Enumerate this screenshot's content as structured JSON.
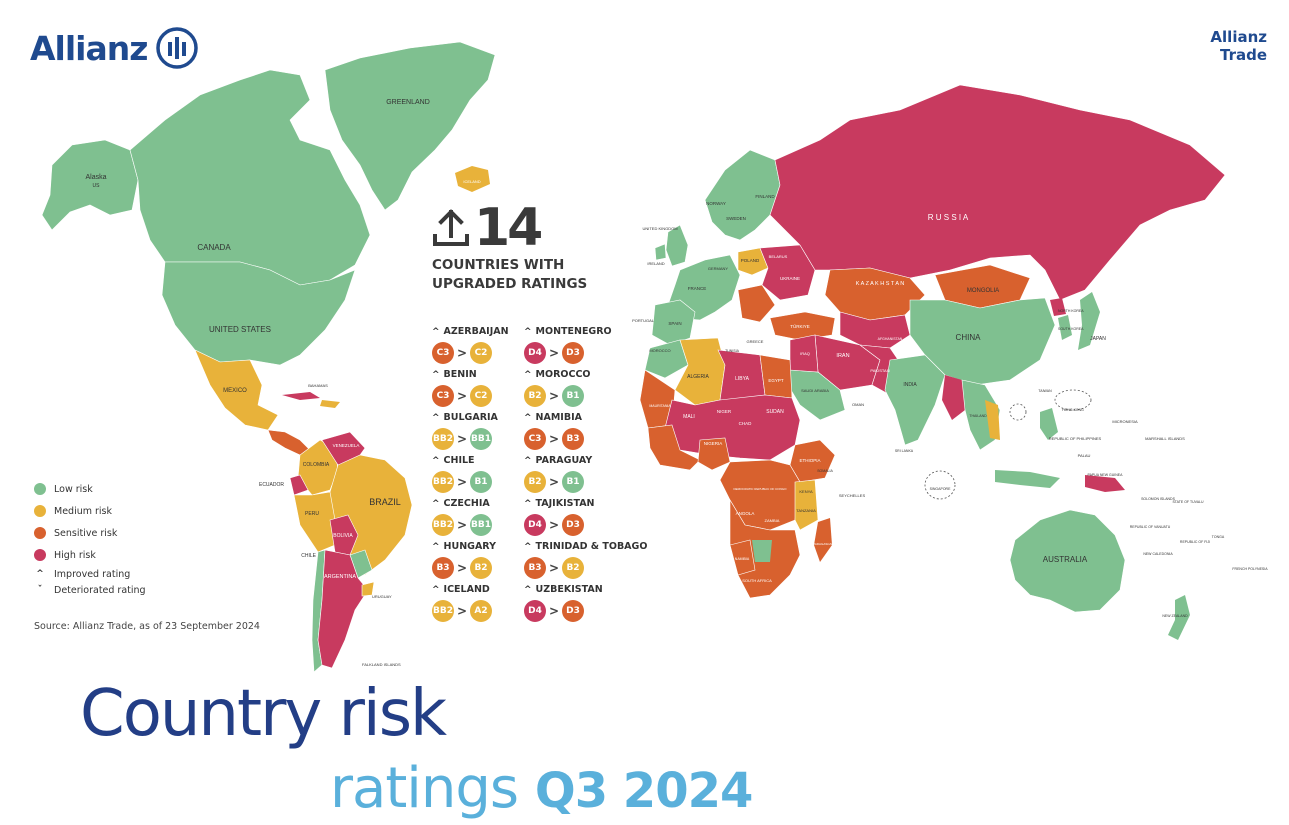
{
  "brand": {
    "name": "Allianz",
    "trade_line1": "Allianz",
    "trade_line2": "Trade"
  },
  "colors": {
    "low": "#7fc090",
    "medium": "#e8b23a",
    "sensitive": "#d8612e",
    "high": "#c83a5f",
    "navy": "#233e86",
    "sky": "#5ab0db"
  },
  "upgrades": {
    "count": "14",
    "label": "COUNTRIES WITH UPGRADED RATINGS",
    "icon": "upload-arrow-icon"
  },
  "ratings": [
    {
      "country": "AZERBAIJAN",
      "from": "C3",
      "from_risk": "sensitive",
      "to": "C2",
      "to_risk": "medium"
    },
    {
      "country": "BENIN",
      "from": "C3",
      "from_risk": "sensitive",
      "to": "C2",
      "to_risk": "medium"
    },
    {
      "country": "BULGARIA",
      "from": "BB2",
      "from_risk": "medium",
      "to": "BB1",
      "to_risk": "low"
    },
    {
      "country": "CHILE",
      "from": "BB2",
      "from_risk": "medium",
      "to": "B1",
      "to_risk": "low"
    },
    {
      "country": "CZECHIA",
      "from": "BB2",
      "from_risk": "medium",
      "to": "BB1",
      "to_risk": "low"
    },
    {
      "country": "HUNGARY",
      "from": "B3",
      "from_risk": "sensitive",
      "to": "B2",
      "to_risk": "medium"
    },
    {
      "country": "ICELAND",
      "from": "BB2",
      "from_risk": "medium",
      "to": "A2",
      "to_risk": "medium"
    },
    {
      "country": "MONTENEGRO",
      "from": "D4",
      "from_risk": "high",
      "to": "D3",
      "to_risk": "sensitive"
    },
    {
      "country": "MOROCCO",
      "from": "B2",
      "from_risk": "medium",
      "to": "B1",
      "to_risk": "low"
    },
    {
      "country": "NAMIBIA",
      "from": "C3",
      "from_risk": "sensitive",
      "to": "B3",
      "to_risk": "sensitive"
    },
    {
      "country": "PARAGUAY",
      "from": "B2",
      "from_risk": "medium",
      "to": "B1",
      "to_risk": "low"
    },
    {
      "country": "TAJIKISTAN",
      "from": "D4",
      "from_risk": "high",
      "to": "D3",
      "to_risk": "sensitive"
    },
    {
      "country": "TRINIDAD & TOBAGO",
      "from": "B3",
      "from_risk": "sensitive",
      "to": "B2",
      "to_risk": "medium"
    },
    {
      "country": "UZBEKISTAN",
      "from": "D4",
      "from_risk": "high",
      "to": "D3",
      "to_risk": "sensitive"
    }
  ],
  "legend": {
    "low": "Low risk",
    "medium": "Medium risk",
    "sensitive": "Sensitive risk",
    "high": "High risk",
    "improved": "Improved rating",
    "deteriorated": "Deteriorated rating"
  },
  "source": "Source: Allianz Trade, as of 23 September 2024",
  "title": {
    "line1": "Country risk",
    "line2a": "ratings",
    "line2b": "Q3 2024"
  },
  "map_labels": {
    "greenland": "GREENLAND",
    "alaska": "Alaska",
    "us_small": "US",
    "iceland": "ICELAND",
    "canada": "CANADA",
    "united_states": "UNITED STATES",
    "mexico": "MEXICO",
    "colombia": "COLOMBIA",
    "venezuela": "VENEZUELA",
    "ecuador": "ECUADOR",
    "peru": "PERU",
    "brazil": "BRAZIL",
    "bolivia": "BOLIVIA",
    "chile": "CHILE",
    "argentina": "ARGENTINA",
    "uruguay": "URUGUAY",
    "falkland": "FALKLAND ISLANDS",
    "norway": "NORWAY",
    "sweden": "SWEDEN",
    "finland": "FINLAND",
    "uk": "UNITED KINGDOM",
    "ireland": "IRELAND",
    "france": "FRANCE",
    "spain": "SPAIN",
    "portugal": "PORTUGAL",
    "germany": "GERMANY",
    "poland": "POLAND",
    "ukraine": "UKRAINE",
    "belarus": "BELARUS",
    "turkiye": "TÜRKIYE",
    "greece": "GREECE",
    "russia": "R U S S I A",
    "kazakhstan": "K A Z A K H S T A N",
    "mongolia": "MONGOLIA",
    "china": "CHINA",
    "japan": "JAPAN",
    "south_korea": "SOUTH KOREA",
    "north_korea": "NORTH KOREA",
    "india": "INDIA",
    "iran": "IRAN",
    "iraq": "IRAQ",
    "saudi": "SAUDI ARABIA",
    "oman": "OMAN",
    "pakistan": "PAKISTAN",
    "afghanistan": "AFGHANISTAN",
    "morocco": "MOROCCO",
    "algeria": "ALGERIA",
    "libya": "LIBYA",
    "egypt": "EGYPT",
    "tunisia": "TUNISIA",
    "mali": "MALI",
    "niger": "NIGER",
    "chad": "CHAD",
    "sudan": "SUDAN",
    "nigeria": "NIGERIA",
    "ethiopia": "ETHIOPIA",
    "somalia": "SOMALIA",
    "kenya": "KENYA",
    "tanzania": "TANZANIA",
    "drc": "DEMOCRATIC REPUBLIC OF CONGO",
    "angola": "ANGOLA",
    "zambia": "ZAMBIA",
    "namibia": "NAMIBIA",
    "south_africa": "SOUTH AFRICA",
    "madagascar": "MADAGASCAR",
    "mauritania": "MAURITANIA",
    "seychelles": "SEYCHELLES",
    "philippines": "REPUBLIC OF PHILIPPINES",
    "hong_kong": "HONG KONG",
    "singapore": "SINGAPORE",
    "taiwan": "TAIWAN",
    "australia": "AUSTRALIA",
    "new_zealand": "NEW ZEALAND",
    "papua": "PAPUA NEW GUINEA",
    "micronesia": "MICRONESIA",
    "palau": "PALAU",
    "marshall": "MARSHALL ISLANDS",
    "solomon": "SOLOMON ISLANDS",
    "vanuatu": "REPUBLIC OF VANUATU",
    "fiji": "REPUBLIC OF FIJI",
    "tonga": "TONGA",
    "tuvalu": "STATE OF TUVALU",
    "new_caledonia": "NEW CALEDONIA",
    "polynesia": "FRENCH POLYNESIA",
    "bahamas": "BAHAMAS",
    "srilanka": "SRI LANKA",
    "thailand": "THAILAND"
  }
}
